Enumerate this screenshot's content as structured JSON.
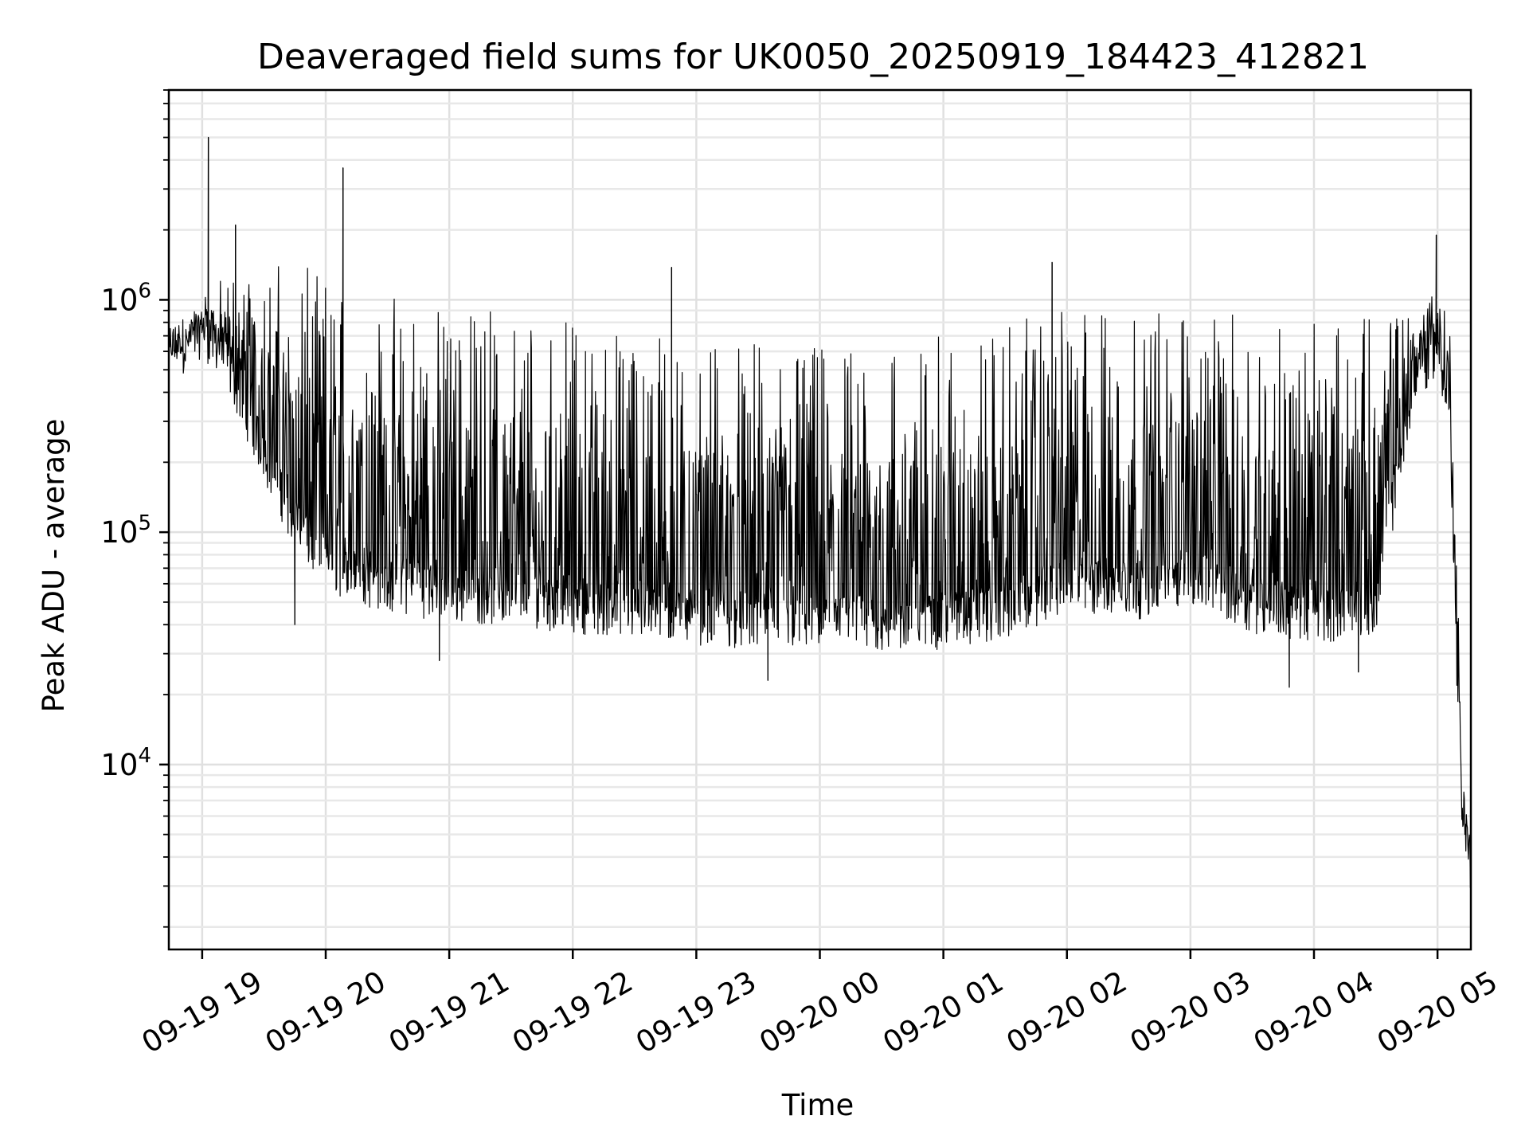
{
  "chart_data": {
    "type": "line",
    "title": "Deaveraged field sums for UK0050_20250919_184423_412821",
    "xlabel": "Time",
    "ylabel": "Peak ADU - average",
    "yscale": "log",
    "x_start": "2025-09-19 18:44",
    "x_end": "2025-09-20 05:16",
    "xlim_hours": [
      -0.27,
      10.27
    ],
    "ylim": [
      1600,
      8000000
    ],
    "grid": true,
    "legend": "none",
    "line_color": "#000000",
    "x_ticks": [
      {
        "label": "09-19 19",
        "hour": 0
      },
      {
        "label": "09-19 20",
        "hour": 1
      },
      {
        "label": "09-19 21",
        "hour": 2
      },
      {
        "label": "09-19 22",
        "hour": 3
      },
      {
        "label": "09-19 23",
        "hour": 4
      },
      {
        "label": "09-20 00",
        "hour": 5
      },
      {
        "label": "09-20 01",
        "hour": 6
      },
      {
        "label": "09-20 02",
        "hour": 7
      },
      {
        "label": "09-20 03",
        "hour": 8
      },
      {
        "label": "09-20 04",
        "hour": 9
      },
      {
        "label": "09-20 05",
        "hour": 10
      }
    ],
    "y_ticks": [
      {
        "base": "10",
        "exp": "4",
        "value": 10000
      },
      {
        "base": "10",
        "exp": "5",
        "value": 100000
      },
      {
        "base": "10",
        "exp": "6",
        "value": 1000000
      }
    ],
    "envelope": {
      "description": "Dense noisy series; per-hour lower baseline and upper envelope of the signal",
      "hours": [
        -0.27,
        -0.1,
        0.0,
        0.2,
        0.5,
        0.8,
        1.0,
        1.2,
        1.5,
        2.0,
        2.5,
        3.0,
        3.5,
        4.0,
        4.5,
        5.0,
        5.5,
        6.0,
        6.5,
        7.0,
        7.5,
        8.0,
        8.5,
        9.0,
        9.5,
        9.8,
        10.0,
        10.1,
        10.15,
        10.2,
        10.27
      ],
      "baseline": [
        550000,
        600000,
        700000,
        500000,
        200000,
        90000,
        70000,
        60000,
        55000,
        50000,
        48000,
        45000,
        42000,
        40000,
        38000,
        38000,
        37000,
        38000,
        42000,
        55000,
        50000,
        60000,
        45000,
        40000,
        45000,
        400000,
        600000,
        300000,
        30000,
        6000,
        3000
      ],
      "peaks": [
        750000,
        850000,
        1100000,
        1300000,
        1500000,
        1400000,
        1300000,
        1300000,
        1100000,
        950000,
        900000,
        800000,
        750000,
        700000,
        650000,
        650000,
        650000,
        700000,
        800000,
        900000,
        950000,
        950000,
        850000,
        800000,
        900000,
        1100000,
        1200000,
        1000000,
        100000,
        12000,
        6000
      ]
    },
    "spikes": [
      {
        "hour": 0.05,
        "value": 5000000
      },
      {
        "hour": 0.27,
        "value": 2100000
      },
      {
        "hour": 1.14,
        "value": 3700000
      },
      {
        "hour": 9.99,
        "value": 1900000
      },
      {
        "hour": 6.88,
        "value": 1450000
      },
      {
        "hour": 3.8,
        "value": 1380000
      }
    ],
    "dips": [
      {
        "hour": 0.75,
        "value": 40000
      },
      {
        "hour": 1.92,
        "value": 28000
      },
      {
        "hour": 4.58,
        "value": 23000
      },
      {
        "hour": 8.8,
        "value": 21500
      },
      {
        "hour": 9.36,
        "value": 25000
      }
    ]
  }
}
